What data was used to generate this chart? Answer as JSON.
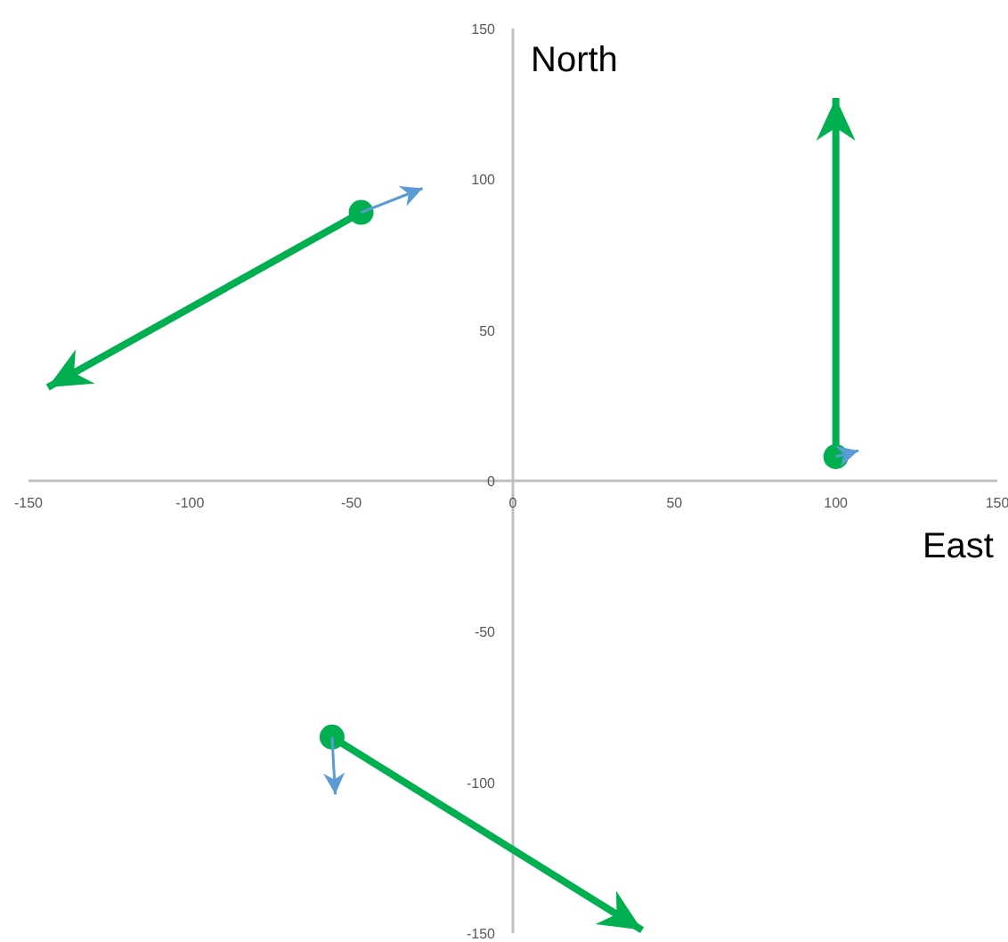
{
  "chart_data": {
    "type": "scatter",
    "xlabel": "East",
    "ylabel": "North",
    "xlim": [
      -150,
      150
    ],
    "ylim": [
      -150,
      150
    ],
    "xticks": [
      -150,
      -100,
      -50,
      0,
      50,
      100,
      150
    ],
    "yticks": [
      -150,
      -100,
      -50,
      0,
      50,
      100,
      150
    ],
    "grid": false,
    "series": [
      {
        "type": "line",
        "color": "#00b050",
        "x": [
          -47,
          -144
        ],
        "values": [
          89,
          31
        ]
      },
      {
        "type": "line",
        "color": "#00b050",
        "x": [
          100,
          100
        ],
        "values": [
          8,
          127
        ]
      },
      {
        "type": "line",
        "color": "#00b050",
        "x": [
          -56,
          40
        ],
        "values": [
          -85,
          -149
        ]
      },
      {
        "type": "line",
        "color": "#5b9bd5",
        "x": [
          -47,
          -28
        ],
        "values": [
          89,
          97
        ]
      },
      {
        "type": "line",
        "color": "#5b9bd5",
        "x": [
          100,
          107
        ],
        "values": [
          8,
          10
        ]
      },
      {
        "type": "line",
        "color": "#5b9bd5",
        "x": [
          -56,
          -55
        ],
        "values": [
          -85,
          -104
        ]
      },
      {
        "color": "#00b050",
        "x": [
          -47,
          100,
          -56
        ],
        "values": [
          89,
          8,
          -85
        ],
        "marker": "circle"
      }
    ]
  }
}
